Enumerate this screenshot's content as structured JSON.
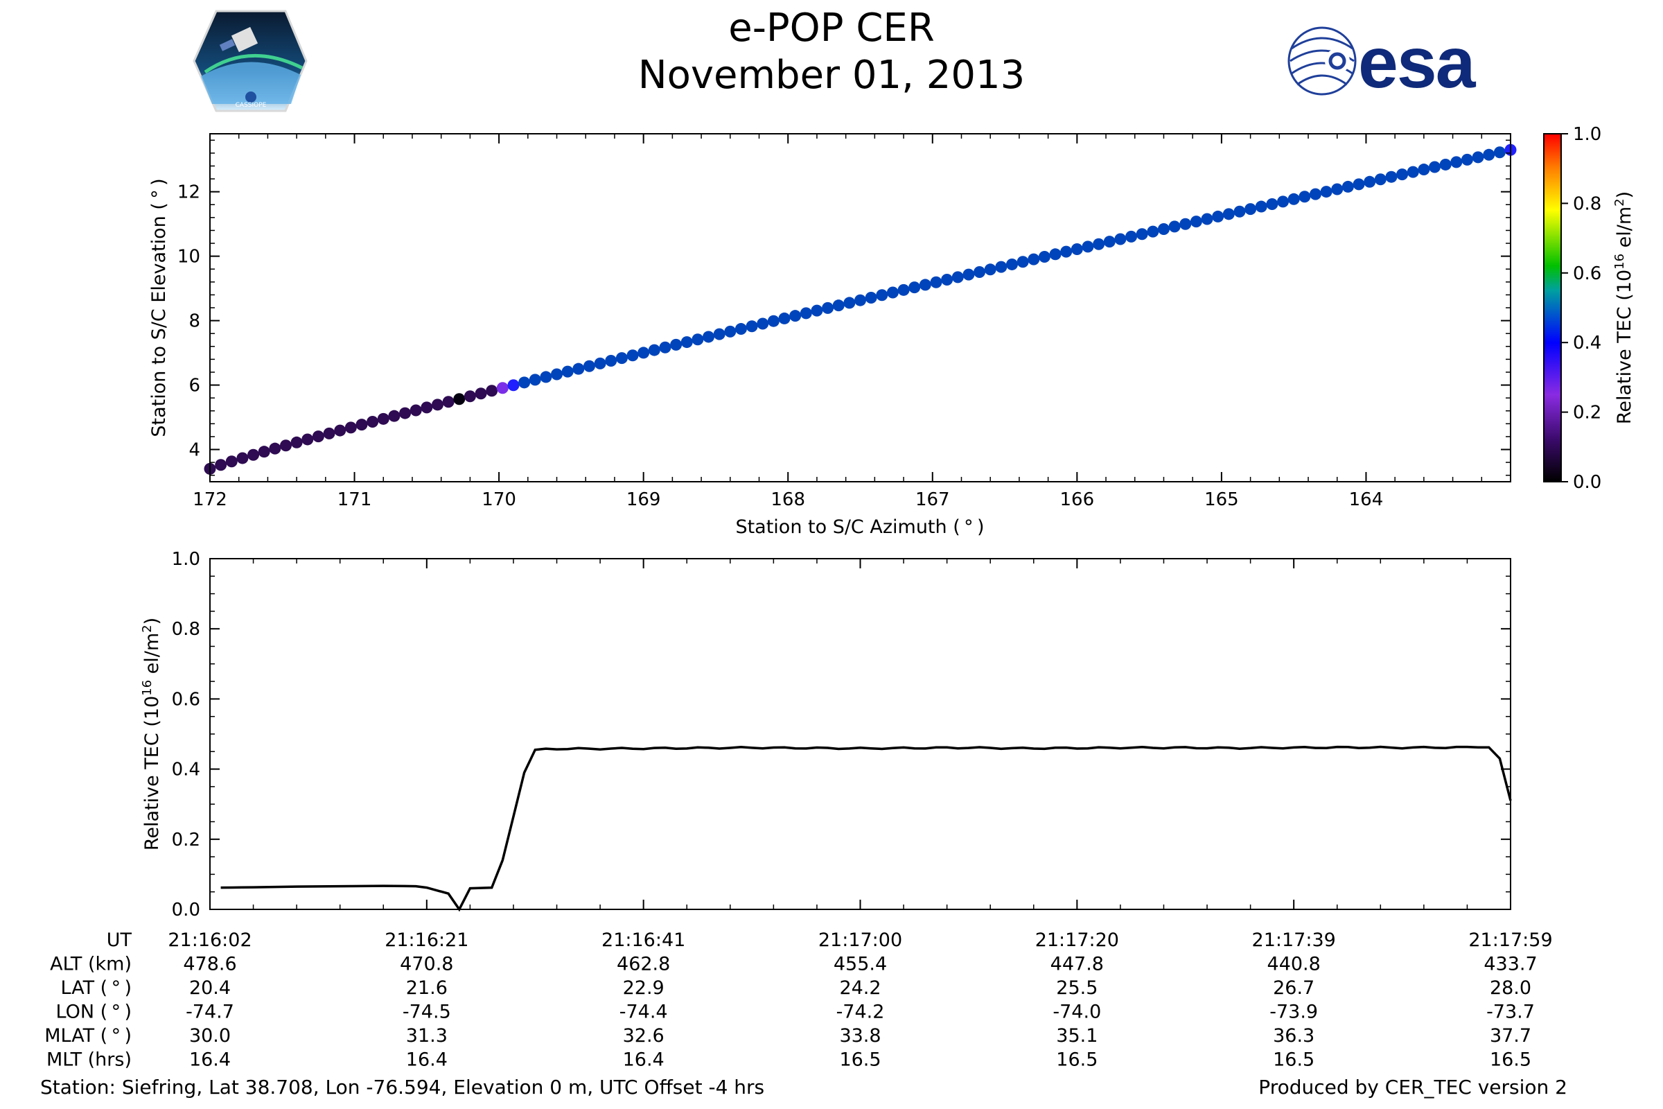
{
  "header": {
    "title_line1": "e-POP CER",
    "title_line2": "November 01, 2013",
    "logo_right_text": "esa",
    "logo_left_text": "CASSIOPE"
  },
  "colors": {
    "ink": "#000000",
    "marker_base": "#0044bb"
  },
  "chart_data": [
    {
      "type": "scatter",
      "name": "elevation-vs-azimuth",
      "xlabel": "Station to S/C Azimuth ( ° )",
      "ylabel": "Station to S/C Elevation ( ° )",
      "xlim": [
        172,
        163
      ],
      "ylim": [
        3,
        13.8
      ],
      "xticks": [
        172,
        171,
        170,
        169,
        168,
        167,
        166,
        165,
        164
      ],
      "yticks": [
        4,
        6,
        8,
        10,
        12
      ],
      "az_start": 172.0,
      "az_end": 163.0,
      "el_start": 3.4,
      "el_end": 13.3,
      "point_count": 121,
      "colorbar": {
        "label": "Relative TEC (10",
        "label_exp": "16",
        "label_tail": " el/m",
        "label_sq": "2",
        "label_close": ")",
        "ticks": [
          "0.0",
          "0.2",
          "0.4",
          "0.6",
          "0.8",
          "1.0"
        ],
        "range": [
          0,
          1
        ]
      }
    },
    {
      "type": "line",
      "name": "relative-tec-vs-time",
      "ylabel": "Relative TEC (10",
      "ylabel_exp": "16",
      "ylabel_tail": " el/m",
      "ylabel_sq": "2",
      "ylabel_close": ")",
      "ylim": [
        0,
        1
      ],
      "yticks": [
        "0.0",
        "0.2",
        "0.4",
        "0.6",
        "0.8",
        "1.0"
      ],
      "x_index_range": [
        0,
        120
      ],
      "series": [
        {
          "name": "Relative TEC",
          "x": [
            1,
            4,
            8,
            12,
            16,
            19,
            20,
            22,
            23,
            24,
            26,
            27,
            29,
            30,
            31,
            32,
            33,
            35,
            40,
            45,
            50,
            55,
            60,
            65,
            70,
            75,
            80,
            85,
            90,
            95,
            100,
            105,
            110,
            115,
            118,
            119,
            120
          ],
          "values": [
            0.062,
            0.063,
            0.065,
            0.066,
            0.067,
            0.066,
            0.062,
            0.045,
            0.0,
            0.06,
            0.062,
            0.14,
            0.39,
            0.455,
            0.457,
            0.458,
            0.458,
            0.458,
            0.459,
            0.46,
            0.461,
            0.46,
            0.459,
            0.46,
            0.461,
            0.459,
            0.46,
            0.461,
            0.461,
            0.46,
            0.461,
            0.462,
            0.461,
            0.462,
            0.462,
            0.43,
            0.31
          ]
        }
      ]
    }
  ],
  "info_table": {
    "row_labels": [
      "UT",
      "ALT (km)",
      "LAT ( ° )",
      "LON ( ° )",
      "MLAT ( ° )",
      "MLT (hrs)"
    ],
    "columns": [
      [
        "21:16:02",
        "478.6",
        "20.4",
        "-74.7",
        "30.0",
        "16.4"
      ],
      [
        "21:16:21",
        "470.8",
        "21.6",
        "-74.5",
        "31.3",
        "16.4"
      ],
      [
        "21:16:41",
        "462.8",
        "22.9",
        "-74.4",
        "32.6",
        "16.4"
      ],
      [
        "21:17:00",
        "455.4",
        "24.2",
        "-74.2",
        "33.8",
        "16.5"
      ],
      [
        "21:17:20",
        "447.8",
        "25.5",
        "-74.0",
        "35.1",
        "16.5"
      ],
      [
        "21:17:39",
        "440.8",
        "26.7",
        "-73.9",
        "36.3",
        "16.5"
      ],
      [
        "21:17:59",
        "433.7",
        "28.0",
        "-73.7",
        "37.7",
        "16.5"
      ]
    ]
  },
  "footer": {
    "station": "Station: Siefring, Lat 38.708, Lon -76.594, Elevation 0 m, UTC Offset -4 hrs",
    "produced_by": "Produced by CER_TEC version 2"
  }
}
